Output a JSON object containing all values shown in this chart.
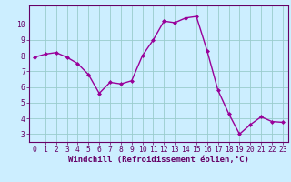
{
  "x": [
    0,
    1,
    2,
    3,
    4,
    5,
    6,
    7,
    8,
    9,
    10,
    11,
    12,
    13,
    14,
    15,
    16,
    17,
    18,
    19,
    20,
    21,
    22,
    23
  ],
  "y": [
    7.9,
    8.1,
    8.2,
    7.9,
    7.5,
    6.8,
    5.6,
    6.3,
    6.2,
    6.4,
    8.0,
    9.0,
    10.2,
    10.1,
    10.4,
    10.5,
    8.3,
    5.8,
    4.3,
    3.0,
    3.6,
    4.1,
    3.8,
    3.75
  ],
  "line_color": "#990099",
  "marker": "D",
  "marker_size": 2,
  "bg_color": "#cceeff",
  "grid_color": "#99cccc",
  "xlabel": "Windchill (Refroidissement éolien,°C)",
  "xlim": [
    -0.5,
    23.5
  ],
  "ylim": [
    2.5,
    11.2
  ],
  "yticks": [
    3,
    4,
    5,
    6,
    7,
    8,
    9,
    10
  ],
  "xticks": [
    0,
    1,
    2,
    3,
    4,
    5,
    6,
    7,
    8,
    9,
    10,
    11,
    12,
    13,
    14,
    15,
    16,
    17,
    18,
    19,
    20,
    21,
    22,
    23
  ],
  "tick_color": "#660066",
  "line_width": 1.0,
  "axis_label_fontsize": 6.5,
  "tick_fontsize": 5.8,
  "spine_color": "#660066"
}
